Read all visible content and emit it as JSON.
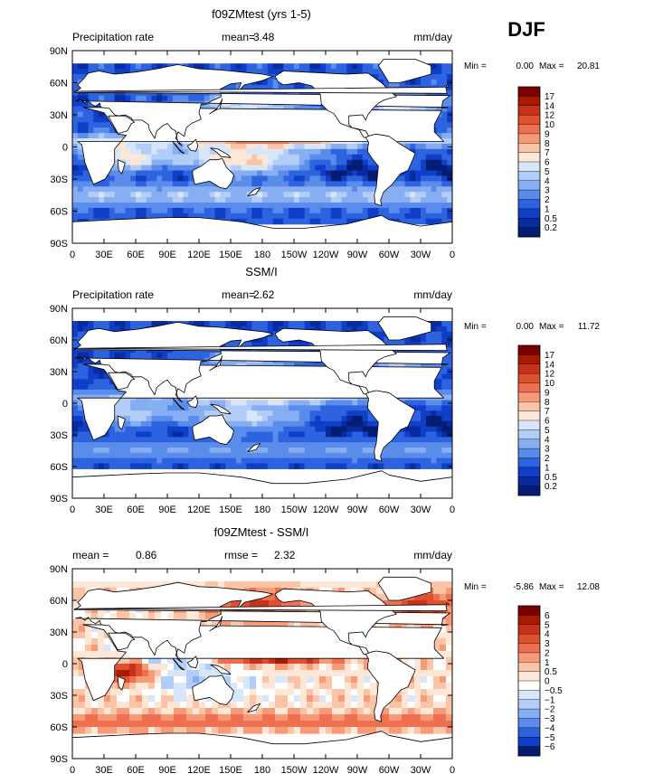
{
  "season": "DJF",
  "chart_data": [
    {
      "type": "heatmap",
      "title": "f09ZMtest (yrs 1-5)",
      "variable": "Precipitation rate",
      "units": "mm/day",
      "stats": [
        {
          "label": "mean=",
          "value": "3.48"
        }
      ],
      "range": {
        "min_label": "Min =",
        "min": "0.00",
        "max_label": "Max =",
        "max": "20.81"
      },
      "xlabels": [
        "0",
        "30E",
        "60E",
        "90E",
        "120E",
        "150E",
        "180",
        "150W",
        "120W",
        "90W",
        "60W",
        "30W",
        "0"
      ],
      "ylabels": [
        "90N",
        "60N",
        "30N",
        "0",
        "30S",
        "60S",
        "90S"
      ],
      "colorbar": {
        "levels": [
          "17",
          "14",
          "12",
          "10",
          "9",
          "8",
          "7",
          "6",
          "5",
          "4",
          "3",
          "2",
          "1",
          "0.5",
          "0.2"
        ],
        "colors": [
          "#7a0000",
          "#a81900",
          "#c8321a",
          "#e0502e",
          "#ef7050",
          "#f79a78",
          "#fbc4a6",
          "#fde7d6",
          "#d8e6fb",
          "#b2cdf7",
          "#87adf2",
          "#5a8ceb",
          "#2e63e0",
          "#0f3ec8",
          "#082ba0",
          "#041d72"
        ]
      }
    },
    {
      "type": "heatmap",
      "title": "SSM/I",
      "variable": "Precipitation rate",
      "units": "mm/day",
      "stats": [
        {
          "label": "mean=",
          "value": "2.62"
        }
      ],
      "range": {
        "min_label": "Min =",
        "min": "0.00",
        "max_label": "Max =",
        "max": "11.72"
      },
      "xlabels": [
        "0",
        "30E",
        "60E",
        "90E",
        "120E",
        "150E",
        "180",
        "150W",
        "120W",
        "90W",
        "60W",
        "30W",
        "0"
      ],
      "ylabels": [
        "90N",
        "60N",
        "30N",
        "0",
        "30S",
        "60S",
        "90S"
      ],
      "colorbar": {
        "levels": [
          "17",
          "14",
          "12",
          "10",
          "9",
          "8",
          "7",
          "6",
          "5",
          "4",
          "3",
          "2",
          "1",
          "0.5",
          "0.2"
        ],
        "colors": [
          "#7a0000",
          "#a81900",
          "#c8321a",
          "#e0502e",
          "#ef7050",
          "#f79a78",
          "#fbc4a6",
          "#fde7d6",
          "#d8e6fb",
          "#b2cdf7",
          "#87adf2",
          "#5a8ceb",
          "#2e63e0",
          "#0f3ec8",
          "#082ba0",
          "#041d72"
        ]
      }
    },
    {
      "type": "heatmap",
      "title": "f09ZMtest - SSM/I",
      "variable": "",
      "units": "mm/day",
      "stats": [
        {
          "label": "mean =",
          "value": "0.86"
        },
        {
          "label": "rmse =",
          "value": "2.32"
        }
      ],
      "range": {
        "min_label": "Min =",
        "min": "-5.86",
        "max_label": "Max =",
        "max": "12.08"
      },
      "xlabels": [
        "0",
        "30E",
        "60E",
        "90E",
        "120E",
        "150E",
        "180",
        "150W",
        "120W",
        "90W",
        "60W",
        "30W",
        "0"
      ],
      "ylabels": [
        "90N",
        "60N",
        "30N",
        "0",
        "30S",
        "60S",
        "90S"
      ],
      "colorbar": {
        "levels": [
          "6",
          "5",
          "4",
          "3",
          "2",
          "1",
          "0.5",
          "0",
          "−0.5",
          "−1",
          "−2",
          "−3",
          "−4",
          "−5",
          "−6"
        ],
        "colors": [
          "#7a0000",
          "#a81900",
          "#c8321a",
          "#e0502e",
          "#ef7050",
          "#f79a78",
          "#fbc4a6",
          "#fde7d6",
          "#ffffff",
          "#d8e6fb",
          "#b2cdf7",
          "#87adf2",
          "#5a8ceb",
          "#2e63e0",
          "#0f3ec8",
          "#041d72"
        ]
      }
    }
  ]
}
